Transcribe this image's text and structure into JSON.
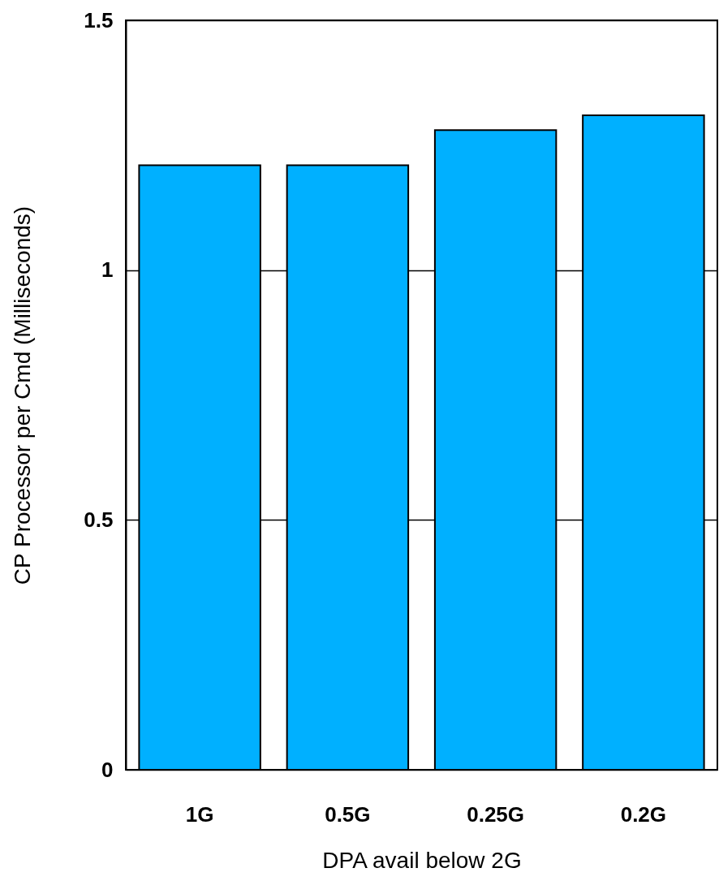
{
  "chart_data": {
    "type": "bar",
    "xlabel": "DPA avail below 2G",
    "ylabel": "CP Processor per Cmd (Milliseconds)",
    "categories": [
      "1G",
      "0.5G",
      "0.25G",
      "0.2G"
    ],
    "values": [
      1.21,
      1.21,
      1.28,
      1.31
    ],
    "color": "#00b0ff",
    "ylim": [
      0,
      1.5
    ],
    "yticks": [
      0,
      0.5,
      1,
      1.5
    ],
    "grid": "y"
  }
}
